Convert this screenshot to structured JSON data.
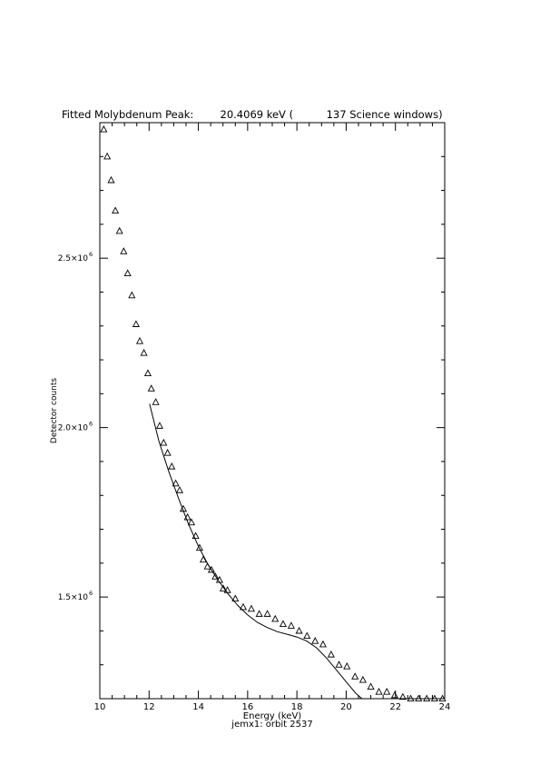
{
  "title": {
    "text": "Fitted Molybdenum Peak:        20.4069 keV (          137 Science windows)"
  },
  "chart_data": {
    "type": "scatter",
    "xlabel": "Energy (keV)",
    "ylabel": "Detector counts",
    "subtitle": "jemx1: orbit 2537",
    "xlim": [
      10,
      24
    ],
    "ylim": [
      1200000,
      2900000
    ],
    "x_ticks": [
      10,
      12,
      14,
      16,
      18,
      20,
      22,
      24
    ],
    "y_ticks": [
      {
        "value": 1500000,
        "mantissa": "1.5×10",
        "exp": "6"
      },
      {
        "value": 2000000,
        "mantissa": "2.0×10",
        "exp": "6"
      },
      {
        "value": 2500000,
        "mantissa": "2.5×10",
        "exp": "6"
      }
    ],
    "series": [
      {
        "marker": "triangle",
        "x": [
          10.16,
          10.3,
          10.46,
          10.63,
          10.8,
          10.97,
          11.13,
          11.3,
          11.47,
          11.62,
          11.79,
          11.95,
          12.09,
          12.27,
          12.43,
          12.59,
          12.75,
          12.92,
          13.08,
          13.24,
          13.39,
          13.56,
          13.72,
          13.89,
          14.05,
          14.2,
          14.37,
          14.53,
          14.69,
          14.86,
          15.01,
          15.18,
          15.5,
          15.82,
          16.15,
          16.47,
          16.8,
          17.12,
          17.44,
          17.77,
          18.09,
          18.41,
          18.74,
          19.06,
          19.39,
          19.71,
          20.03,
          20.36,
          20.68,
          21.0,
          21.33,
          21.65,
          21.97,
          22.3,
          22.62,
          22.94,
          23.27,
          23.59,
          23.91
        ],
        "y": [
          2880000,
          2800000,
          2730000,
          2640000,
          2580000,
          2520000,
          2455000,
          2390000,
          2305000,
          2255000,
          2220000,
          2160000,
          2115000,
          2075000,
          2005000,
          1955000,
          1925000,
          1885000,
          1835000,
          1815000,
          1760000,
          1735000,
          1720000,
          1680000,
          1645000,
          1610000,
          1590000,
          1580000,
          1560000,
          1550000,
          1525000,
          1520000,
          1495000,
          1470000,
          1465000,
          1450000,
          1450000,
          1435000,
          1420000,
          1415000,
          1400000,
          1385000,
          1370000,
          1360000,
          1330000,
          1300000,
          1295000,
          1265000,
          1255000,
          1235000,
          1220000,
          1220000,
          1210000,
          1205000,
          1200000,
          1200000,
          1200000,
          1200000,
          1200000
        ]
      },
      {
        "marker": "line",
        "x": [
          12.02,
          12.4,
          12.8,
          13.2,
          13.6,
          14.0,
          14.4,
          14.8,
          15.2,
          15.6,
          16.0,
          16.4,
          16.8,
          17.2,
          17.6,
          18.0,
          18.4,
          18.8,
          19.2,
          19.6,
          20.0,
          20.4,
          20.8
        ],
        "y": [
          2070000,
          1960000,
          1870000,
          1790000,
          1715000,
          1650000,
          1595000,
          1550000,
          1510000,
          1475000,
          1447000,
          1425000,
          1410000,
          1398000,
          1390000,
          1382000,
          1370000,
          1350000,
          1320000,
          1285000,
          1250000,
          1215000,
          1190000
        ]
      }
    ]
  }
}
